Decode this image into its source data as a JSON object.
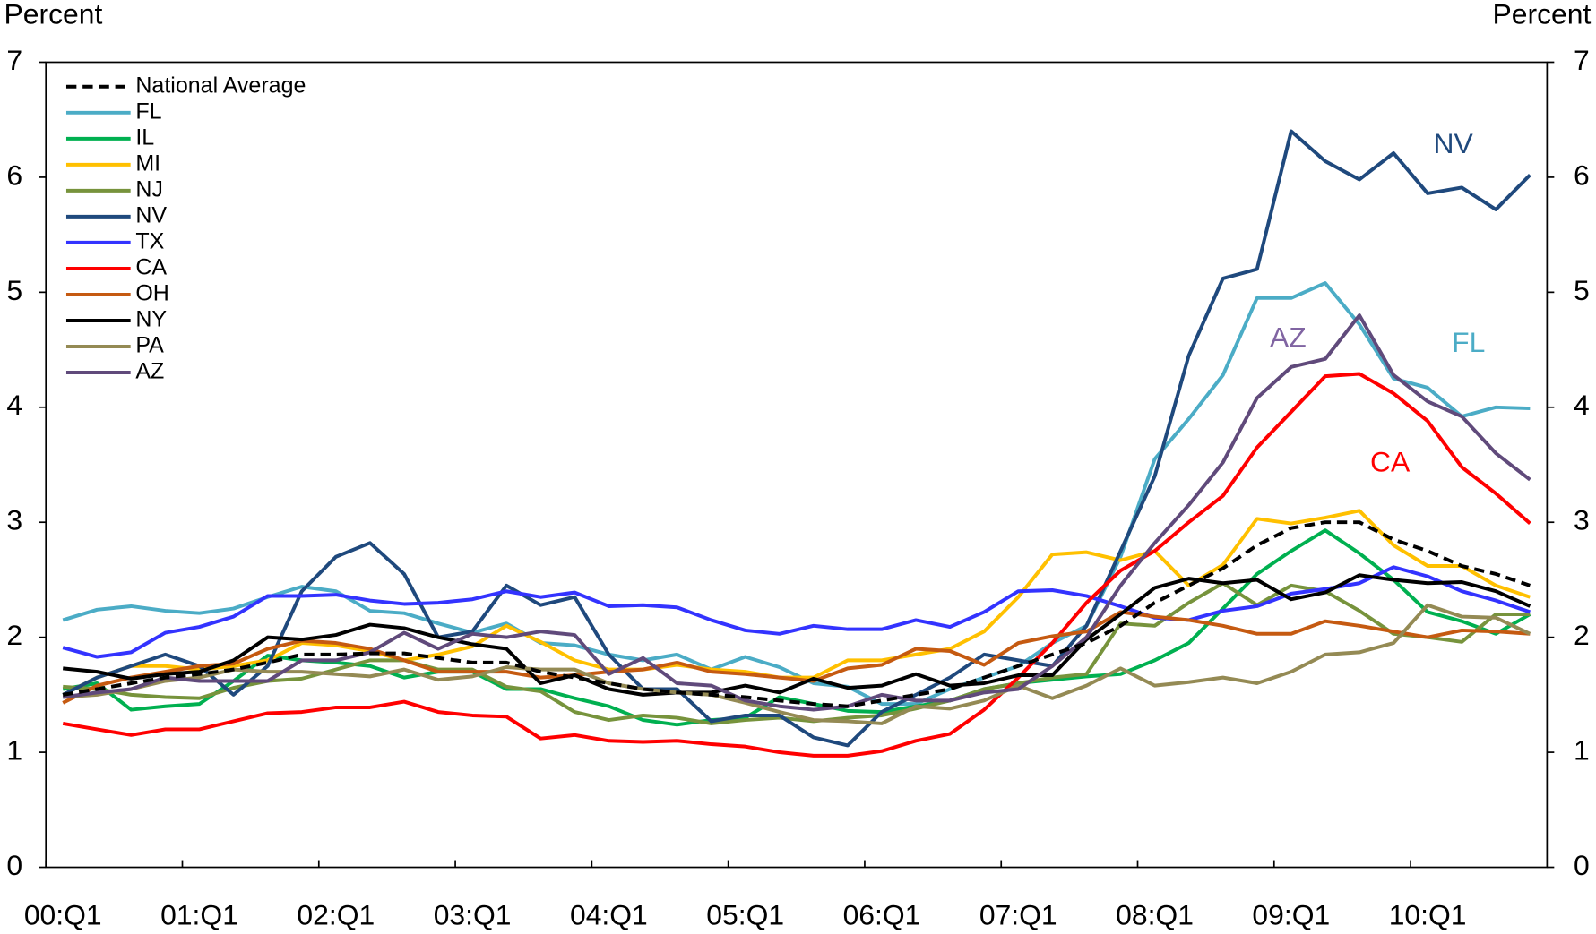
{
  "chart_data": {
    "type": "line",
    "ylabel": "Percent",
    "y2label": "Percent",
    "ylim": [
      0,
      7
    ],
    "yticks": [
      0,
      1,
      2,
      3,
      4,
      5,
      6,
      7
    ],
    "y2lim": [
      0,
      7
    ],
    "y2ticks": [
      0,
      1,
      2,
      3,
      4,
      5,
      6,
      7
    ],
    "legend": "upper left",
    "categories": [
      "00:Q1",
      null,
      null,
      null,
      "01:Q1",
      null,
      null,
      null,
      "02:Q1",
      null,
      null,
      null,
      "03:Q1",
      null,
      null,
      null,
      "04:Q1",
      null,
      null,
      null,
      "05:Q1",
      null,
      null,
      null,
      "06:Q1",
      null,
      null,
      null,
      "07:Q1",
      null,
      null,
      null,
      "08:Q1",
      null,
      null,
      null,
      "09:Q1",
      null,
      null,
      null,
      "10:Q1",
      null,
      null,
      null
    ],
    "series": [
      {
        "name": "National Average",
        "color": "#000000",
        "dashed": true,
        "values": [
          1.5,
          1.55,
          1.6,
          1.65,
          1.68,
          1.72,
          1.78,
          1.85,
          1.85,
          1.86,
          1.86,
          1.82,
          1.78,
          1.78,
          1.7,
          1.65,
          1.6,
          1.55,
          1.52,
          1.5,
          1.48,
          1.45,
          1.42,
          1.4,
          1.45,
          1.5,
          1.55,
          1.65,
          1.75,
          1.85,
          1.95,
          2.1,
          2.3,
          2.45,
          2.6,
          2.8,
          2.95,
          3.0,
          3.0,
          2.85,
          2.75,
          2.62,
          2.55,
          2.45
        ]
      },
      {
        "name": "FL",
        "color": "#4bacc6",
        "values": [
          2.15,
          2.24,
          2.27,
          2.23,
          2.21,
          2.25,
          2.35,
          2.44,
          2.4,
          2.23,
          2.21,
          2.12,
          2.04,
          2.12,
          1.95,
          1.93,
          1.85,
          1.8,
          1.85,
          1.72,
          1.83,
          1.74,
          1.6,
          1.57,
          1.42,
          1.42,
          1.55,
          1.65,
          1.75,
          1.95,
          2.1,
          2.7,
          3.55,
          3.9,
          4.28,
          4.95,
          4.95,
          5.08,
          4.72,
          4.25,
          4.17,
          3.92,
          4.0,
          3.99
        ]
      },
      {
        "name": "IL",
        "color": "#00b050",
        "values": [
          1.55,
          1.6,
          1.37,
          1.4,
          1.42,
          1.62,
          1.84,
          1.8,
          1.78,
          1.75,
          1.65,
          1.7,
          1.7,
          1.55,
          1.55,
          1.47,
          1.4,
          1.28,
          1.24,
          1.28,
          1.3,
          1.48,
          1.42,
          1.36,
          1.35,
          1.4,
          1.45,
          1.55,
          1.6,
          1.63,
          1.66,
          1.68,
          1.8,
          1.95,
          2.25,
          2.55,
          2.75,
          2.93,
          2.73,
          2.5,
          2.22,
          2.14,
          2.03,
          2.2
        ]
      },
      {
        "name": "MI",
        "color": "#ffc000",
        "values": [
          1.5,
          1.65,
          1.75,
          1.75,
          1.72,
          1.75,
          1.8,
          1.95,
          1.93,
          1.88,
          1.8,
          1.85,
          1.92,
          2.1,
          1.96,
          1.8,
          1.72,
          1.72,
          1.76,
          1.72,
          1.7,
          1.65,
          1.65,
          1.8,
          1.8,
          1.85,
          1.9,
          2.05,
          2.35,
          2.72,
          2.74,
          2.67,
          2.75,
          2.45,
          2.63,
          3.03,
          2.99,
          3.04,
          3.1,
          2.8,
          2.62,
          2.62,
          2.45,
          2.35
        ]
      },
      {
        "name": "NJ",
        "color": "#77933c",
        "values": [
          1.57,
          1.55,
          1.5,
          1.48,
          1.47,
          1.56,
          1.62,
          1.64,
          1.72,
          1.8,
          1.8,
          1.72,
          1.72,
          1.57,
          1.53,
          1.35,
          1.28,
          1.32,
          1.3,
          1.25,
          1.28,
          1.3,
          1.27,
          1.3,
          1.32,
          1.38,
          1.45,
          1.55,
          1.6,
          1.65,
          1.68,
          2.12,
          2.1,
          2.3,
          2.47,
          2.28,
          2.45,
          2.4,
          2.23,
          2.03,
          2.0,
          1.96,
          2.2,
          2.2
        ]
      },
      {
        "name": "NV",
        "color": "#1f497d",
        "values": [
          1.5,
          1.65,
          1.75,
          1.85,
          1.75,
          1.5,
          1.75,
          2.4,
          2.7,
          2.82,
          2.55,
          2.0,
          2.05,
          2.45,
          2.28,
          2.35,
          1.85,
          1.55,
          1.55,
          1.27,
          1.32,
          1.32,
          1.13,
          1.06,
          1.35,
          1.5,
          1.65,
          1.85,
          1.8,
          1.75,
          2.1,
          2.75,
          3.4,
          4.45,
          5.12,
          5.2,
          6.4,
          6.14,
          5.98,
          6.21,
          5.86,
          5.91,
          5.72,
          6.02
        ]
      },
      {
        "name": "TX",
        "color": "#3333ff",
        "values": [
          1.91,
          1.83,
          1.87,
          2.04,
          2.09,
          2.18,
          2.36,
          2.36,
          2.37,
          2.32,
          2.29,
          2.3,
          2.33,
          2.4,
          2.35,
          2.39,
          2.27,
          2.28,
          2.26,
          2.15,
          2.06,
          2.03,
          2.1,
          2.07,
          2.07,
          2.15,
          2.09,
          2.22,
          2.4,
          2.41,
          2.36,
          2.27,
          2.17,
          2.15,
          2.23,
          2.27,
          2.38,
          2.42,
          2.47,
          2.61,
          2.53,
          2.4,
          2.32,
          2.22
        ]
      },
      {
        "name": "CA",
        "color": "#ff0000",
        "values": [
          1.25,
          1.2,
          1.15,
          1.2,
          1.2,
          1.27,
          1.34,
          1.35,
          1.39,
          1.39,
          1.44,
          1.35,
          1.32,
          1.31,
          1.12,
          1.15,
          1.1,
          1.09,
          1.1,
          1.07,
          1.05,
          1.0,
          0.97,
          0.97,
          1.01,
          1.1,
          1.16,
          1.37,
          1.65,
          1.95,
          2.3,
          2.58,
          2.75,
          3.0,
          3.23,
          3.65,
          3.96,
          4.27,
          4.29,
          4.12,
          3.88,
          3.48,
          3.25,
          2.99
        ]
      },
      {
        "name": "OH",
        "color": "#c55a11",
        "values": [
          1.43,
          1.58,
          1.65,
          1.7,
          1.75,
          1.77,
          1.9,
          1.97,
          1.95,
          1.9,
          1.8,
          1.7,
          1.7,
          1.7,
          1.65,
          1.67,
          1.7,
          1.72,
          1.78,
          1.7,
          1.68,
          1.65,
          1.62,
          1.73,
          1.76,
          1.9,
          1.88,
          1.76,
          1.95,
          2.01,
          2.05,
          2.22,
          2.18,
          2.15,
          2.1,
          2.03,
          2.03,
          2.14,
          2.1,
          2.05,
          2.0,
          2.06,
          2.05,
          2.03
        ]
      },
      {
        "name": "NY",
        "color": "#000000",
        "values": [
          1.73,
          1.7,
          1.64,
          1.68,
          1.7,
          1.8,
          2.0,
          1.98,
          2.02,
          2.11,
          2.08,
          2.0,
          1.94,
          1.9,
          1.6,
          1.67,
          1.55,
          1.5,
          1.52,
          1.52,
          1.58,
          1.52,
          1.64,
          1.56,
          1.58,
          1.68,
          1.58,
          1.6,
          1.67,
          1.67,
          1.98,
          2.2,
          2.43,
          2.51,
          2.47,
          2.5,
          2.33,
          2.39,
          2.54,
          2.5,
          2.47,
          2.48,
          2.4,
          2.27
        ]
      },
      {
        "name": "PA",
        "color": "#948a54",
        "values": [
          1.48,
          1.5,
          1.55,
          1.62,
          1.65,
          1.72,
          1.7,
          1.7,
          1.68,
          1.66,
          1.72,
          1.63,
          1.66,
          1.74,
          1.72,
          1.72,
          1.6,
          1.55,
          1.52,
          1.5,
          1.43,
          1.35,
          1.28,
          1.27,
          1.25,
          1.4,
          1.38,
          1.45,
          1.58,
          1.47,
          1.58,
          1.73,
          1.58,
          1.61,
          1.65,
          1.6,
          1.7,
          1.85,
          1.87,
          1.95,
          2.28,
          2.18,
          2.17,
          2.03
        ]
      },
      {
        "name": "AZ",
        "color": "#604a7b",
        "values": [
          1.48,
          1.52,
          1.55,
          1.65,
          1.62,
          1.62,
          1.62,
          1.8,
          1.8,
          1.87,
          2.04,
          1.9,
          2.03,
          2.0,
          2.05,
          2.02,
          1.68,
          1.82,
          1.6,
          1.58,
          1.45,
          1.4,
          1.37,
          1.4,
          1.5,
          1.45,
          1.45,
          1.52,
          1.55,
          1.75,
          2.0,
          2.45,
          2.82,
          3.15,
          3.52,
          4.08,
          4.35,
          4.42,
          4.8,
          4.28,
          4.05,
          3.92,
          3.6,
          3.37
        ]
      }
    ],
    "annotations": [
      {
        "text": "NV",
        "color": "#1f497d"
      },
      {
        "text": "AZ",
        "color": "#8064a2"
      },
      {
        "text": "FL",
        "color": "#4bacc6"
      },
      {
        "text": "CA",
        "color": "#ff0000"
      }
    ]
  }
}
